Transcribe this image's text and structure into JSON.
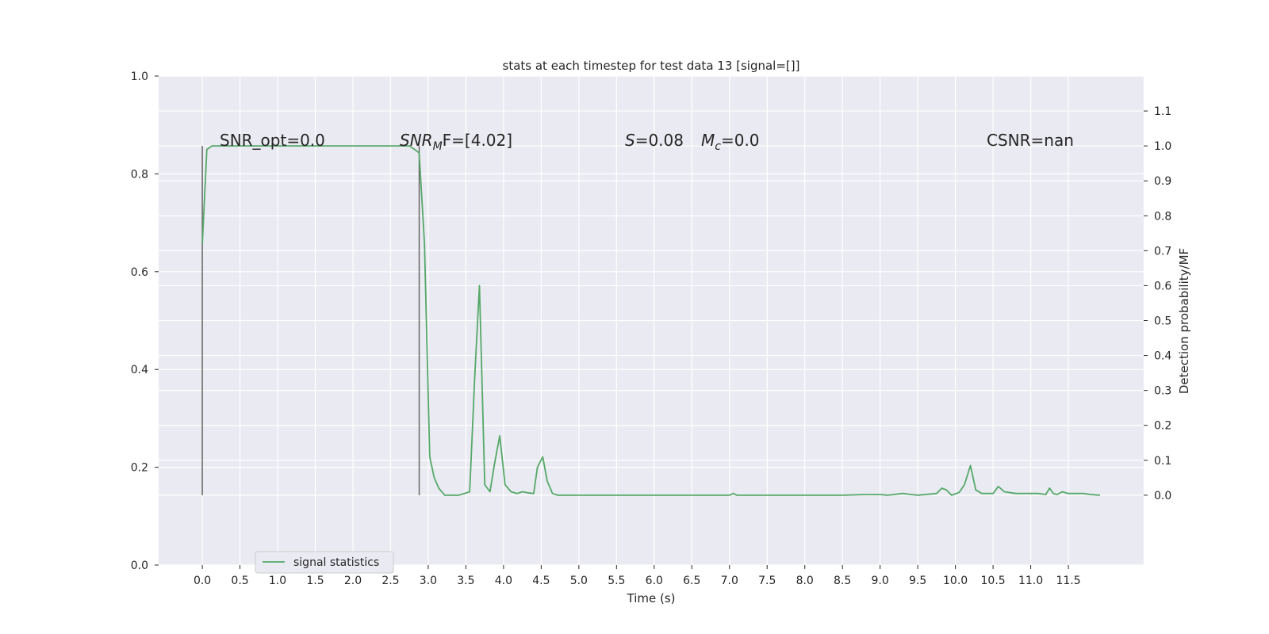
{
  "chart_data": {
    "type": "line",
    "title": "stats at each timestep for test data 13 [signal=[]]",
    "xlabel": "Time (s)",
    "ylabel_left": "",
    "ylabel_right": "Detection probability/MF",
    "xlim": [
      -0.58,
      12.5
    ],
    "ylim_left": [
      0.0,
      1.0
    ],
    "ylim_right": [
      -0.2,
      1.2
    ],
    "grid": true,
    "x_ticks": [
      "0.0",
      "0.5",
      "1.0",
      "1.5",
      "2.0",
      "2.5",
      "3.0",
      "3.5",
      "4.0",
      "4.5",
      "5.0",
      "5.5",
      "6.0",
      "6.5",
      "7.0",
      "7.5",
      "8.0",
      "8.5",
      "9.0",
      "9.5",
      "10.0",
      "10.5",
      "11.0",
      "11.5"
    ],
    "y_ticks_left": [
      "0.0",
      "0.2",
      "0.4",
      "0.6",
      "0.8",
      "1.0"
    ],
    "y_ticks_right": [
      "0.0",
      "0.1",
      "0.2",
      "0.3",
      "0.4",
      "0.5",
      "0.6",
      "0.7",
      "0.8",
      "0.9",
      "1.0",
      "1.1"
    ],
    "legend": {
      "placement": "lower-left",
      "entries": [
        "signal statistics"
      ]
    },
    "annotations": {
      "snr_opt": "SNR_opt=0.0",
      "snr_mf_main": "SNR",
      "snr_mf_sub": "M",
      "snr_mf_rest": "F=[4.02]",
      "s_sym": "S",
      "s_val": "=0.08",
      "mc_sym": "M",
      "mc_sub": "c",
      "mc_val": "=0.0",
      "csnr": "CSNR=nan"
    },
    "vlines": [
      {
        "x": 0.0,
        "y_from": 0.0,
        "y_to": 1.0
      },
      {
        "x": 2.88,
        "y_from": 0.0,
        "y_to": 1.0
      }
    ],
    "colors": {
      "series": "#55a868",
      "vline": "#666666",
      "background": "#eaeaf2",
      "grid": "#ffffff"
    },
    "series": [
      {
        "name": "signal statistics",
        "axis": "right",
        "x": [
          0.0,
          0.06,
          0.13,
          0.2,
          0.3,
          0.5,
          1.0,
          1.5,
          2.0,
          2.5,
          2.75,
          2.82,
          2.88,
          2.95,
          3.02,
          3.08,
          3.14,
          3.22,
          3.3,
          3.4,
          3.48,
          3.55,
          3.62,
          3.68,
          3.75,
          3.82,
          3.88,
          3.95,
          4.02,
          4.1,
          4.18,
          4.25,
          4.32,
          4.4,
          4.45,
          4.52,
          4.58,
          4.65,
          4.72,
          4.8,
          5.0,
          6.0,
          7.0,
          7.05,
          7.1,
          7.2,
          8.0,
          8.5,
          8.8,
          9.0,
          9.1,
          9.3,
          9.5,
          9.75,
          9.82,
          9.88,
          9.95,
          10.05,
          10.12,
          10.2,
          10.27,
          10.35,
          10.5,
          10.57,
          10.65,
          10.8,
          11.0,
          11.1,
          11.2,
          11.25,
          11.3,
          11.35,
          11.42,
          11.5,
          11.7,
          11.8,
          11.92
        ],
        "values": [
          0.72,
          0.99,
          1.0,
          1.0,
          1.0,
          1.0,
          1.0,
          1.0,
          1.0,
          1.0,
          1.0,
          0.99,
          0.98,
          0.72,
          0.11,
          0.05,
          0.02,
          0.0,
          0.0,
          0.0,
          0.005,
          0.01,
          0.35,
          0.6,
          0.03,
          0.01,
          0.09,
          0.17,
          0.03,
          0.01,
          0.005,
          0.01,
          0.007,
          0.005,
          0.08,
          0.11,
          0.04,
          0.005,
          0.0,
          0.0,
          0.0,
          0.0,
          0.0,
          0.005,
          0.0,
          0.0,
          0.0,
          0.0,
          0.002,
          0.002,
          0.0,
          0.005,
          0.0,
          0.005,
          0.02,
          0.015,
          0.0,
          0.008,
          0.03,
          0.085,
          0.015,
          0.005,
          0.005,
          0.025,
          0.01,
          0.005,
          0.005,
          0.005,
          0.002,
          0.02,
          0.005,
          0.002,
          0.01,
          0.005,
          0.005,
          0.002,
          0.0
        ]
      }
    ]
  }
}
